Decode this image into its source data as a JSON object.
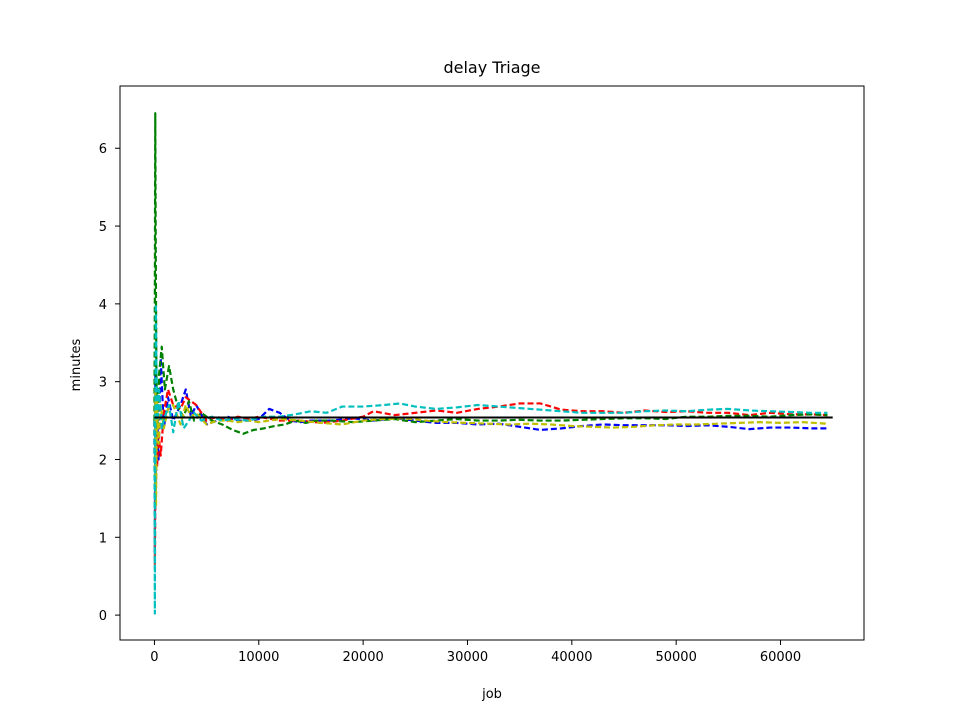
{
  "chart_data": {
    "type": "line",
    "title": "delay Triage",
    "xlabel": "job",
    "ylabel": "minutes",
    "xlim": [
      -3300,
      68000
    ],
    "ylim": [
      -0.32,
      6.8
    ],
    "xticks": [
      0,
      10000,
      20000,
      30000,
      40000,
      50000,
      60000
    ],
    "yticks": [
      0,
      1,
      2,
      3,
      4,
      5,
      6
    ],
    "grid": false,
    "legend": "none",
    "reference_line": {
      "y": 2.54,
      "x_range": [
        0,
        65000
      ],
      "color": "#000000",
      "style": "solid"
    },
    "series": [
      {
        "color": "#0000ff",
        "style": "dashed",
        "points": [
          [
            0,
            2.5
          ],
          [
            40,
            0.8
          ],
          [
            90,
            3.1
          ],
          [
            150,
            1.7
          ],
          [
            250,
            2.6
          ],
          [
            400,
            2.0
          ],
          [
            600,
            3.3
          ],
          [
            900,
            2.4
          ],
          [
            1300,
            2.8
          ],
          [
            1800,
            2.5
          ],
          [
            2500,
            2.7
          ],
          [
            3000,
            2.9
          ],
          [
            3500,
            2.55
          ],
          [
            4000,
            2.7
          ],
          [
            5000,
            2.45
          ],
          [
            6000,
            2.5
          ],
          [
            7000,
            2.55
          ],
          [
            8000,
            2.5
          ],
          [
            9000,
            2.5
          ],
          [
            10000,
            2.52
          ],
          [
            11000,
            2.65
          ],
          [
            12000,
            2.6
          ],
          [
            13000,
            2.5
          ],
          [
            14000,
            2.48
          ],
          [
            15000,
            2.5
          ],
          [
            17000,
            2.5
          ],
          [
            19000,
            2.53
          ],
          [
            21000,
            2.5
          ],
          [
            23000,
            2.53
          ],
          [
            25000,
            2.5
          ],
          [
            27000,
            2.47
          ],
          [
            29000,
            2.47
          ],
          [
            31000,
            2.45
          ],
          [
            33000,
            2.46
          ],
          [
            35000,
            2.42
          ],
          [
            37000,
            2.38
          ],
          [
            39000,
            2.4
          ],
          [
            41000,
            2.43
          ],
          [
            43000,
            2.45
          ],
          [
            45000,
            2.44
          ],
          [
            47000,
            2.44
          ],
          [
            49000,
            2.44
          ],
          [
            51000,
            2.43
          ],
          [
            53000,
            2.44
          ],
          [
            55000,
            2.42
          ],
          [
            57000,
            2.39
          ],
          [
            59000,
            2.41
          ],
          [
            61000,
            2.41
          ],
          [
            63000,
            2.4
          ],
          [
            64500,
            2.4
          ]
        ]
      },
      {
        "color": "#ff0000",
        "style": "dashed",
        "points": [
          [
            0,
            2.5
          ],
          [
            40,
            0.65
          ],
          [
            90,
            1.5
          ],
          [
            150,
            2.6
          ],
          [
            250,
            1.9
          ],
          [
            400,
            2.3
          ],
          [
            600,
            2.05
          ],
          [
            900,
            2.6
          ],
          [
            1300,
            2.9
          ],
          [
            1800,
            2.7
          ],
          [
            2500,
            2.65
          ],
          [
            3000,
            2.8
          ],
          [
            3500,
            2.75
          ],
          [
            4000,
            2.7
          ],
          [
            5000,
            2.5
          ],
          [
            6000,
            2.55
          ],
          [
            7000,
            2.5
          ],
          [
            8000,
            2.55
          ],
          [
            9000,
            2.52
          ],
          [
            10000,
            2.55
          ],
          [
            12000,
            2.5
          ],
          [
            14000,
            2.5
          ],
          [
            16000,
            2.47
          ],
          [
            18000,
            2.5
          ],
          [
            20000,
            2.55
          ],
          [
            21000,
            2.62
          ],
          [
            23000,
            2.57
          ],
          [
            25000,
            2.6
          ],
          [
            27000,
            2.63
          ],
          [
            29000,
            2.6
          ],
          [
            31000,
            2.65
          ],
          [
            33000,
            2.68
          ],
          [
            35000,
            2.72
          ],
          [
            37000,
            2.72
          ],
          [
            39000,
            2.64
          ],
          [
            41000,
            2.62
          ],
          [
            43000,
            2.62
          ],
          [
            45000,
            2.6
          ],
          [
            47000,
            2.63
          ],
          [
            49000,
            2.61
          ],
          [
            51000,
            2.62
          ],
          [
            53000,
            2.6
          ],
          [
            55000,
            2.6
          ],
          [
            57000,
            2.57
          ],
          [
            59000,
            2.6
          ],
          [
            61000,
            2.58
          ],
          [
            63000,
            2.58
          ],
          [
            64500,
            2.57
          ]
        ]
      },
      {
        "color": "#008000",
        "style": "dashed",
        "points": [
          [
            0,
            2.5
          ],
          [
            40,
            4.1
          ],
          [
            80,
            6.45
          ],
          [
            130,
            4.5
          ],
          [
            200,
            2.9
          ],
          [
            300,
            2.4
          ],
          [
            450,
            3.1
          ],
          [
            700,
            3.45
          ],
          [
            1000,
            2.9
          ],
          [
            1400,
            3.2
          ],
          [
            1800,
            2.9
          ],
          [
            2300,
            2.65
          ],
          [
            2800,
            2.55
          ],
          [
            3300,
            2.75
          ],
          [
            3800,
            2.5
          ],
          [
            4500,
            2.6
          ],
          [
            5500,
            2.5
          ],
          [
            6500,
            2.45
          ],
          [
            7500,
            2.38
          ],
          [
            8500,
            2.33
          ],
          [
            9500,
            2.38
          ],
          [
            10500,
            2.4
          ],
          [
            11500,
            2.43
          ],
          [
            12500,
            2.45
          ],
          [
            13500,
            2.5
          ],
          [
            14500,
            2.47
          ],
          [
            15500,
            2.5
          ],
          [
            17000,
            2.5
          ],
          [
            19000,
            2.48
          ],
          [
            21000,
            2.5
          ],
          [
            23000,
            2.52
          ],
          [
            25000,
            2.48
          ],
          [
            27000,
            2.5
          ],
          [
            29000,
            2.52
          ],
          [
            31000,
            2.5
          ],
          [
            33000,
            2.5
          ],
          [
            35000,
            2.51
          ],
          [
            37000,
            2.5
          ],
          [
            39000,
            2.5
          ],
          [
            41000,
            2.51
          ],
          [
            43000,
            2.52
          ],
          [
            45000,
            2.53
          ],
          [
            47000,
            2.53
          ],
          [
            49000,
            2.52
          ],
          [
            51000,
            2.55
          ],
          [
            53000,
            2.55
          ],
          [
            55000,
            2.56
          ],
          [
            57000,
            2.56
          ],
          [
            59000,
            2.55
          ],
          [
            61000,
            2.57
          ],
          [
            63000,
            2.58
          ],
          [
            64500,
            2.57
          ]
        ]
      },
      {
        "color": "#bfbf00",
        "style": "dashed",
        "points": [
          [
            0,
            2.5
          ],
          [
            40,
            1.6
          ],
          [
            90,
            2.9
          ],
          [
            150,
            1.4
          ],
          [
            250,
            2.8
          ],
          [
            400,
            2.2
          ],
          [
            600,
            2.7
          ],
          [
            900,
            2.4
          ],
          [
            1300,
            2.65
          ],
          [
            1800,
            2.7
          ],
          [
            2500,
            2.45
          ],
          [
            3000,
            2.7
          ],
          [
            3500,
            2.55
          ],
          [
            4000,
            2.6
          ],
          [
            5000,
            2.45
          ],
          [
            6000,
            2.5
          ],
          [
            7000,
            2.5
          ],
          [
            8000,
            2.48
          ],
          [
            9000,
            2.5
          ],
          [
            10000,
            2.48
          ],
          [
            12000,
            2.52
          ],
          [
            14000,
            2.5
          ],
          [
            16000,
            2.47
          ],
          [
            18000,
            2.45
          ],
          [
            20000,
            2.5
          ],
          [
            22000,
            2.52
          ],
          [
            24000,
            2.53
          ],
          [
            26000,
            2.5
          ],
          [
            28000,
            2.48
          ],
          [
            30000,
            2.47
          ],
          [
            32000,
            2.46
          ],
          [
            34000,
            2.45
          ],
          [
            36000,
            2.46
          ],
          [
            38000,
            2.45
          ],
          [
            40000,
            2.43
          ],
          [
            42000,
            2.42
          ],
          [
            44000,
            2.41
          ],
          [
            46000,
            2.42
          ],
          [
            48000,
            2.44
          ],
          [
            50000,
            2.45
          ],
          [
            52000,
            2.45
          ],
          [
            54000,
            2.46
          ],
          [
            56000,
            2.47
          ],
          [
            58000,
            2.48
          ],
          [
            60000,
            2.47
          ],
          [
            62000,
            2.48
          ],
          [
            64500,
            2.46
          ]
        ]
      },
      {
        "color": "#00bfbf",
        "style": "dashed",
        "points": [
          [
            0,
            2.5
          ],
          [
            40,
            0.02
          ],
          [
            80,
            2.4
          ],
          [
            130,
            4.0
          ],
          [
            200,
            3.1
          ],
          [
            300,
            2.5
          ],
          [
            450,
            2.9
          ],
          [
            700,
            2.4
          ],
          [
            1000,
            2.55
          ],
          [
            1400,
            2.7
          ],
          [
            1800,
            2.35
          ],
          [
            2300,
            2.75
          ],
          [
            2800,
            2.4
          ],
          [
            3300,
            2.5
          ],
          [
            3800,
            2.6
          ],
          [
            4500,
            2.5
          ],
          [
            5500,
            2.55
          ],
          [
            6500,
            2.5
          ],
          [
            7500,
            2.52
          ],
          [
            9000,
            2.5
          ],
          [
            10500,
            2.55
          ],
          [
            12000,
            2.55
          ],
          [
            13500,
            2.58
          ],
          [
            15000,
            2.62
          ],
          [
            16500,
            2.6
          ],
          [
            18000,
            2.68
          ],
          [
            20000,
            2.68
          ],
          [
            22000,
            2.7
          ],
          [
            23500,
            2.72
          ],
          [
            25000,
            2.68
          ],
          [
            27000,
            2.65
          ],
          [
            29000,
            2.67
          ],
          [
            31000,
            2.7
          ],
          [
            33000,
            2.68
          ],
          [
            35000,
            2.66
          ],
          [
            37000,
            2.64
          ],
          [
            39000,
            2.62
          ],
          [
            41000,
            2.6
          ],
          [
            43000,
            2.6
          ],
          [
            45000,
            2.6
          ],
          [
            47000,
            2.62
          ],
          [
            49000,
            2.63
          ],
          [
            51000,
            2.62
          ],
          [
            53000,
            2.64
          ],
          [
            55000,
            2.65
          ],
          [
            57000,
            2.63
          ],
          [
            59000,
            2.62
          ],
          [
            61000,
            2.61
          ],
          [
            63000,
            2.6
          ],
          [
            64500,
            2.6
          ]
        ]
      }
    ]
  }
}
